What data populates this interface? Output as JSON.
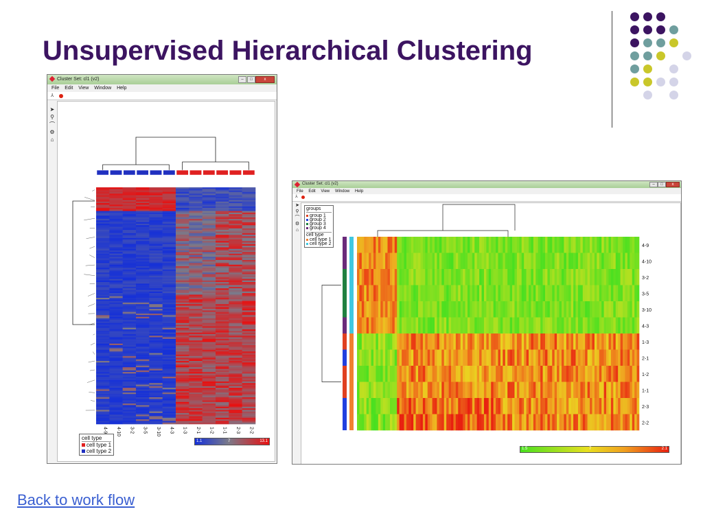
{
  "slide": {
    "title": "Unsupervised Hierarchical Clustering",
    "link": "Back to work flow"
  },
  "decor": {
    "dot_colors": {
      "purple": "#3c1461",
      "teal": "#6f9e9e",
      "olive": "#c9c72a",
      "lavender": "#d4d4e8"
    },
    "rows": [
      [
        "purple",
        "purple",
        "purple"
      ],
      [
        "purple",
        "purple",
        "purple",
        "teal"
      ],
      [
        "purple",
        "teal",
        "teal",
        "olive"
      ],
      [
        "teal",
        "teal",
        "olive",
        "lavender"
      ],
      [
        "teal",
        "olive",
        "lavender"
      ],
      [
        "olive",
        "olive",
        "lavender",
        "lavender"
      ],
      [
        "lavender",
        "lavender"
      ]
    ]
  },
  "win1": {
    "title": "Cluster Set: cl1 (v2)",
    "menu": [
      "File",
      "Edit",
      "View",
      "Window",
      "Help"
    ],
    "tools": [
      "arrow-tool",
      "zoom-tool",
      "lasso-tool",
      "gear-tool",
      "home-tool"
    ],
    "columns": [
      "4-9",
      "4-10",
      "3-2",
      "3-5",
      "3-10",
      "4-3",
      "1-3",
      "2-1",
      "1-2",
      "1-1",
      "2-3",
      "2-2"
    ],
    "legend_title": "cell type",
    "legend_items": [
      {
        "label": "cell type 1",
        "color": "#e02020"
      },
      {
        "label": "cell type 2",
        "color": "#2030c0"
      }
    ],
    "scale_min": "1.1",
    "scale_mid": "7",
    "scale_max": "13.1",
    "colors": {
      "low": "#1530d8",
      "mid": "#7a7a8a",
      "high": "#e81010"
    }
  },
  "win2": {
    "title": "Cluster Set: cl1 (v2)",
    "menu": [
      "File",
      "Edit",
      "View",
      "Window",
      "Help"
    ],
    "tools": [
      "arrow-tool",
      "zoom-tool",
      "lasso-tool",
      "gear-tool",
      "home-tool"
    ],
    "rows": [
      "4-9",
      "4-10",
      "3-2",
      "3-5",
      "3-10",
      "4-3",
      "1-3",
      "2-1",
      "1-2",
      "1-1",
      "2-3",
      "2-2"
    ],
    "legend_groups_title": "groups",
    "legend_groups": [
      {
        "label": "group 1",
        "color": "#e04020"
      },
      {
        "label": "group 2",
        "color": "#2040e0"
      },
      {
        "label": "group 3",
        "color": "#208040"
      },
      {
        "label": "group 4",
        "color": "#6a2a7a"
      }
    ],
    "legend_celltype_title": "cell type",
    "legend_celltypes": [
      {
        "label": "cell type 1",
        "color": "#f08030"
      },
      {
        "label": "cell type 2",
        "color": "#40c8e0"
      }
    ],
    "scale_min": "1.5",
    "scale_mid": "7",
    "scale_max": "2.1",
    "colors": {
      "low": "#49e020",
      "mid": "#e8e020",
      "high": "#e82010"
    }
  }
}
